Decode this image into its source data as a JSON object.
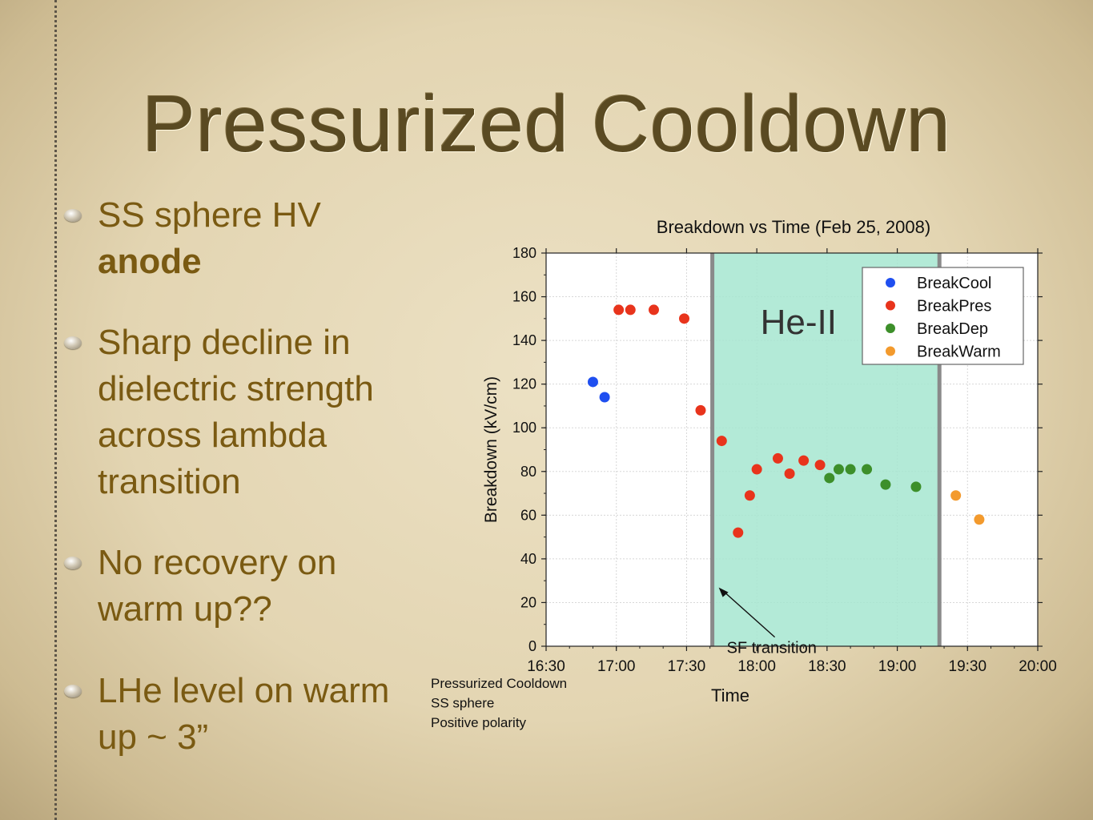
{
  "slide": {
    "title": "Pressurized Cooldown",
    "bullets": [
      {
        "text": "SS sphere HV",
        "bold": "anode"
      },
      {
        "text": "Sharp decline in dielectric strength across lambda transition"
      },
      {
        "text": "No recovery on warm up??"
      },
      {
        "text": "LHe level on warm up ~ 3”"
      }
    ]
  },
  "chart_data": {
    "type": "scatter",
    "title": "Breakdown vs Time (Feb 25, 2008)",
    "xlabel": "Time",
    "ylabel": "Breakdown (kV/cm)",
    "xlim": [
      "16:30",
      "20:00"
    ],
    "ylim": [
      0,
      180
    ],
    "x_ticks": [
      "16:30",
      "17:00",
      "17:30",
      "18:00",
      "18:30",
      "19:00",
      "19:30",
      "20:00"
    ],
    "y_ticks": [
      0,
      20,
      40,
      60,
      80,
      100,
      120,
      140,
      160,
      180
    ],
    "legend_position": "top-right",
    "series": [
      {
        "name": "BreakCool",
        "color": "#1f4ff0",
        "points": [
          [
            "16:50",
            121
          ],
          [
            "16:55",
            114
          ]
        ]
      },
      {
        "name": "BreakPres",
        "color": "#e8341c",
        "points": [
          [
            "17:01",
            154
          ],
          [
            "17:06",
            154
          ],
          [
            "17:16",
            154
          ],
          [
            "17:29",
            150
          ],
          [
            "17:36",
            108
          ],
          [
            "17:45",
            94
          ],
          [
            "17:52",
            52
          ],
          [
            "17:57",
            69
          ],
          [
            "18:00",
            81
          ],
          [
            "18:09",
            86
          ],
          [
            "18:14",
            79
          ],
          [
            "18:20",
            85
          ],
          [
            "18:27",
            83
          ]
        ]
      },
      {
        "name": "BreakDep",
        "color": "#3d8f2a",
        "points": [
          [
            "18:31",
            77
          ],
          [
            "18:35",
            81
          ],
          [
            "18:40",
            81
          ],
          [
            "18:47",
            81
          ],
          [
            "18:55",
            74
          ],
          [
            "19:08",
            73
          ]
        ]
      },
      {
        "name": "BreakWarm",
        "color": "#f39a2d",
        "points": [
          [
            "19:25",
            69
          ],
          [
            "19:35",
            58
          ]
        ]
      }
    ],
    "region": {
      "label": "He-II",
      "x_start": "17:41",
      "x_end": "19:18",
      "color": "#a6e6d0"
    },
    "annotation": {
      "text": "SF transition",
      "x": "17:41",
      "y": 28
    },
    "side_note": [
      "Pressurized Cooldown",
      "SS sphere",
      "Positive polarity"
    ]
  }
}
